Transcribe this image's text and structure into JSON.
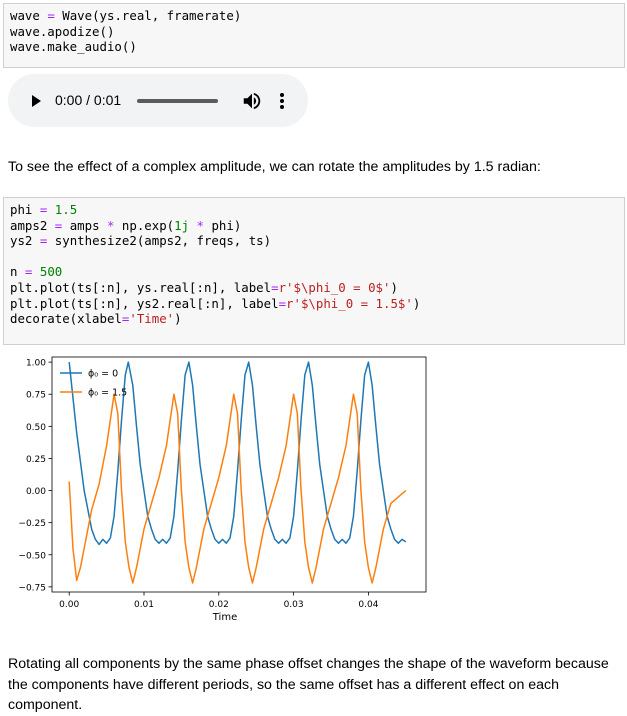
{
  "cell1": {
    "lines": [
      [
        {
          "t": "wave ",
          "c": ""
        },
        {
          "t": "=",
          "c": "k-op"
        },
        {
          "t": " Wave(ys.real, framerate)",
          "c": ""
        }
      ],
      [
        {
          "t": "wave.apodize()",
          "c": ""
        }
      ],
      [
        {
          "t": "wave.make_audio()",
          "c": ""
        }
      ]
    ]
  },
  "audio": {
    "time": "0:00 / 0:01",
    "progress": 0.0
  },
  "markdown1": "To see the effect of a complex amplitude, we can rotate the amplitudes by 1.5 radian:",
  "cell2": {
    "lines": [
      [
        {
          "t": "phi ",
          "c": ""
        },
        {
          "t": "=",
          "c": "k-op"
        },
        {
          "t": " ",
          "c": ""
        },
        {
          "t": "1.5",
          "c": "k-num"
        }
      ],
      [
        {
          "t": "amps2 ",
          "c": ""
        },
        {
          "t": "=",
          "c": "k-op"
        },
        {
          "t": " amps ",
          "c": ""
        },
        {
          "t": "*",
          "c": "k-op"
        },
        {
          "t": " np.exp(",
          "c": ""
        },
        {
          "t": "1j",
          "c": "k-num"
        },
        {
          "t": " ",
          "c": ""
        },
        {
          "t": "*",
          "c": "k-op"
        },
        {
          "t": " phi)",
          "c": ""
        }
      ],
      [
        {
          "t": "ys2 ",
          "c": ""
        },
        {
          "t": "=",
          "c": "k-op"
        },
        {
          "t": " synthesize2(amps2, freqs, ts)",
          "c": ""
        }
      ],
      [
        {
          "t": "",
          "c": ""
        }
      ],
      [
        {
          "t": "n ",
          "c": ""
        },
        {
          "t": "=",
          "c": "k-op"
        },
        {
          "t": " ",
          "c": ""
        },
        {
          "t": "500",
          "c": "k-num"
        }
      ],
      [
        {
          "t": "plt.plot(ts[:n], ys.real[:n], label",
          "c": ""
        },
        {
          "t": "=",
          "c": "k-op"
        },
        {
          "t": "r'$\\phi_0 = 0$'",
          "c": "k-str"
        },
        {
          "t": ")",
          "c": ""
        }
      ],
      [
        {
          "t": "plt.plot(ts[:n], ys2.real[:n], label",
          "c": ""
        },
        {
          "t": "=",
          "c": "k-op"
        },
        {
          "t": "r'$\\phi_0 = 1.5$'",
          "c": "k-str"
        },
        {
          "t": ")",
          "c": ""
        }
      ],
      [
        {
          "t": "decorate(xlabel",
          "c": ""
        },
        {
          "t": "=",
          "c": "k-op"
        },
        {
          "t": "'Time'",
          "c": "k-str"
        },
        {
          "t": ")",
          "c": ""
        }
      ]
    ]
  },
  "chart_data": {
    "type": "line",
    "title": "",
    "xlabel": "Time",
    "ylabel": "",
    "xlim": [
      -0.0023,
      0.0477
    ],
    "ylim": [
      -0.79,
      1.04
    ],
    "xticks": [
      0.0,
      0.01,
      0.02,
      0.03,
      0.04
    ],
    "xtick_labels": [
      "0.00",
      "0.01",
      "0.02",
      "0.03",
      "0.04"
    ],
    "yticks": [
      1.0,
      0.75,
      0.5,
      0.25,
      0.0,
      -0.25,
      -0.5,
      -0.75
    ],
    "ytick_labels": [
      "1.00",
      "0.75",
      "0.50",
      "0.25",
      "0.00",
      "−0.25",
      "−0.50",
      "−0.75"
    ],
    "legend_position": "top-left",
    "grid": false,
    "series": [
      {
        "name": "ϕ₀ = 0",
        "color": "#1f77b4",
        "points": [
          [
            0.0,
            1.0
          ],
          [
            0.001,
            0.45
          ],
          [
            0.002,
            0.0
          ],
          [
            0.003,
            -0.3
          ],
          [
            0.0035,
            -0.38
          ],
          [
            0.004,
            -0.42
          ],
          [
            0.0045,
            -0.38
          ],
          [
            0.005,
            -0.41
          ],
          [
            0.0055,
            -0.37
          ],
          [
            0.006,
            -0.2
          ],
          [
            0.0065,
            0.15
          ],
          [
            0.007,
            0.55
          ],
          [
            0.0075,
            0.9
          ],
          [
            0.0079,
            1.0
          ],
          [
            0.0085,
            0.82
          ],
          [
            0.009,
            0.5
          ],
          [
            0.0095,
            0.2
          ],
          [
            0.01,
            0.0
          ],
          [
            0.0105,
            -0.2
          ],
          [
            0.011,
            -0.3
          ],
          [
            0.0115,
            -0.38
          ],
          [
            0.012,
            -0.41
          ],
          [
            0.0125,
            -0.38
          ],
          [
            0.013,
            -0.41
          ],
          [
            0.0135,
            -0.37
          ],
          [
            0.014,
            -0.2
          ],
          [
            0.0145,
            0.15
          ],
          [
            0.015,
            0.55
          ],
          [
            0.0155,
            0.9
          ],
          [
            0.016,
            1.0
          ],
          [
            0.0165,
            0.82
          ],
          [
            0.017,
            0.5
          ],
          [
            0.0175,
            0.2
          ],
          [
            0.018,
            0.0
          ],
          [
            0.0185,
            -0.2
          ],
          [
            0.019,
            -0.3
          ],
          [
            0.0195,
            -0.38
          ],
          [
            0.02,
            -0.41
          ],
          [
            0.0205,
            -0.38
          ],
          [
            0.021,
            -0.41
          ],
          [
            0.0215,
            -0.37
          ],
          [
            0.022,
            -0.2
          ],
          [
            0.0225,
            0.15
          ],
          [
            0.023,
            0.55
          ],
          [
            0.0235,
            0.9
          ],
          [
            0.024,
            1.0
          ],
          [
            0.0245,
            0.82
          ],
          [
            0.025,
            0.5
          ],
          [
            0.0255,
            0.2
          ],
          [
            0.026,
            0.0
          ],
          [
            0.0265,
            -0.2
          ],
          [
            0.027,
            -0.3
          ],
          [
            0.0275,
            -0.38
          ],
          [
            0.028,
            -0.41
          ],
          [
            0.0285,
            -0.38
          ],
          [
            0.029,
            -0.41
          ],
          [
            0.0295,
            -0.37
          ],
          [
            0.03,
            -0.2
          ],
          [
            0.0305,
            0.15
          ],
          [
            0.031,
            0.55
          ],
          [
            0.0315,
            0.9
          ],
          [
            0.032,
            1.0
          ],
          [
            0.0325,
            0.82
          ],
          [
            0.033,
            0.5
          ],
          [
            0.0335,
            0.2
          ],
          [
            0.034,
            0.0
          ],
          [
            0.0345,
            -0.2
          ],
          [
            0.035,
            -0.3
          ],
          [
            0.0355,
            -0.38
          ],
          [
            0.036,
            -0.41
          ],
          [
            0.0365,
            -0.38
          ],
          [
            0.037,
            -0.41
          ],
          [
            0.0375,
            -0.37
          ],
          [
            0.038,
            -0.2
          ],
          [
            0.0385,
            0.15
          ],
          [
            0.039,
            0.55
          ],
          [
            0.0395,
            0.9
          ],
          [
            0.04,
            1.0
          ],
          [
            0.0405,
            0.82
          ],
          [
            0.041,
            0.5
          ],
          [
            0.0415,
            0.2
          ],
          [
            0.042,
            0.0
          ],
          [
            0.0425,
            -0.2
          ],
          [
            0.043,
            -0.3
          ],
          [
            0.0435,
            -0.38
          ],
          [
            0.044,
            -0.41
          ],
          [
            0.0445,
            -0.38
          ],
          [
            0.045,
            -0.4
          ]
        ]
      },
      {
        "name": "ϕ₀ = 1.5",
        "color": "#ff7f0e",
        "points": [
          [
            0.0,
            0.07
          ],
          [
            0.0005,
            -0.45
          ],
          [
            0.001,
            -0.7
          ],
          [
            0.0015,
            -0.6
          ],
          [
            0.002,
            -0.45
          ],
          [
            0.0025,
            -0.3
          ],
          [
            0.003,
            -0.15
          ],
          [
            0.004,
            0.05
          ],
          [
            0.005,
            0.35
          ],
          [
            0.0055,
            0.55
          ],
          [
            0.006,
            0.75
          ],
          [
            0.0065,
            0.6
          ],
          [
            0.007,
            0.0
          ],
          [
            0.0075,
            -0.4
          ],
          [
            0.008,
            -0.6
          ],
          [
            0.0085,
            -0.72
          ],
          [
            0.009,
            -0.6
          ],
          [
            0.0095,
            -0.45
          ],
          [
            0.01,
            -0.3
          ],
          [
            0.011,
            -0.1
          ],
          [
            0.012,
            0.1
          ],
          [
            0.013,
            0.35
          ],
          [
            0.0135,
            0.55
          ],
          [
            0.014,
            0.75
          ],
          [
            0.0145,
            0.6
          ],
          [
            0.015,
            0.0
          ],
          [
            0.0155,
            -0.4
          ],
          [
            0.016,
            -0.6
          ],
          [
            0.0165,
            -0.72
          ],
          [
            0.017,
            -0.6
          ],
          [
            0.0175,
            -0.45
          ],
          [
            0.018,
            -0.3
          ],
          [
            0.019,
            -0.1
          ],
          [
            0.02,
            0.1
          ],
          [
            0.021,
            0.35
          ],
          [
            0.0215,
            0.55
          ],
          [
            0.022,
            0.75
          ],
          [
            0.0225,
            0.6
          ],
          [
            0.023,
            0.0
          ],
          [
            0.0235,
            -0.4
          ],
          [
            0.024,
            -0.6
          ],
          [
            0.0245,
            -0.72
          ],
          [
            0.025,
            -0.6
          ],
          [
            0.0255,
            -0.45
          ],
          [
            0.026,
            -0.3
          ],
          [
            0.027,
            -0.1
          ],
          [
            0.028,
            0.1
          ],
          [
            0.029,
            0.35
          ],
          [
            0.0295,
            0.55
          ],
          [
            0.03,
            0.75
          ],
          [
            0.0305,
            0.6
          ],
          [
            0.031,
            0.0
          ],
          [
            0.0315,
            -0.4
          ],
          [
            0.032,
            -0.6
          ],
          [
            0.0325,
            -0.72
          ],
          [
            0.033,
            -0.6
          ],
          [
            0.0335,
            -0.45
          ],
          [
            0.034,
            -0.3
          ],
          [
            0.035,
            -0.1
          ],
          [
            0.036,
            0.1
          ],
          [
            0.037,
            0.35
          ],
          [
            0.0375,
            0.55
          ],
          [
            0.038,
            0.75
          ],
          [
            0.0385,
            0.6
          ],
          [
            0.039,
            0.0
          ],
          [
            0.0395,
            -0.4
          ],
          [
            0.04,
            -0.6
          ],
          [
            0.0405,
            -0.72
          ],
          [
            0.041,
            -0.6
          ],
          [
            0.0415,
            -0.45
          ],
          [
            0.042,
            -0.3
          ],
          [
            0.043,
            -0.1
          ],
          [
            0.044,
            -0.05
          ],
          [
            0.045,
            0.0
          ]
        ]
      }
    ]
  },
  "paragraph": "Rotating all components by the same phase offset changes the shape of the waveform because the components have different periods, so the same offset has a different effect on each component."
}
